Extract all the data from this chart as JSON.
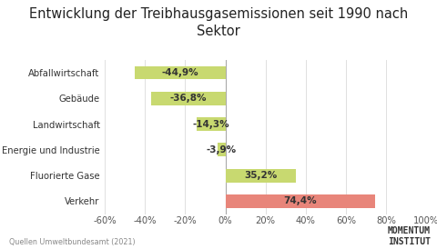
{
  "title": "Entwicklung der Treibhausgasemissionen seit 1990 nach\nSektor",
  "categories": [
    "Abfallwirtschaft",
    "Gebäude",
    "Landwirtschaft",
    "Energie und Industrie",
    "Fluorierte Gase",
    "Verkehr"
  ],
  "values": [
    -44.9,
    -36.8,
    -14.3,
    -3.9,
    35.2,
    74.4
  ],
  "bar_colors": [
    "#c8d970",
    "#c8d970",
    "#c8d970",
    "#c8d970",
    "#c8d970",
    "#e8857a"
  ],
  "bar_labels": [
    "-44,9%",
    "-36,8%",
    "-14,3%",
    "-3,9%",
    "35,2%",
    "74,4%"
  ],
  "xlim": [
    -60,
    100
  ],
  "xticks": [
    -60,
    -40,
    -20,
    0,
    20,
    40,
    60,
    80,
    100
  ],
  "xtick_labels": [
    "-60%",
    "-40%",
    "-20%",
    "0%",
    "20%",
    "40%",
    "60%",
    "80%",
    "100%"
  ],
  "source_text": "Quellen Umweltbundesamt (2021)",
  "logo_line1": "MOMENTUM",
  "logo_line2": "INSTITUT",
  "background_color": "#ffffff",
  "grid_color": "#e0e0e0",
  "title_fontsize": 10.5,
  "label_fontsize": 7.2,
  "bar_label_fontsize": 7.5,
  "source_fontsize": 5.8,
  "logo_fontsize": 7
}
